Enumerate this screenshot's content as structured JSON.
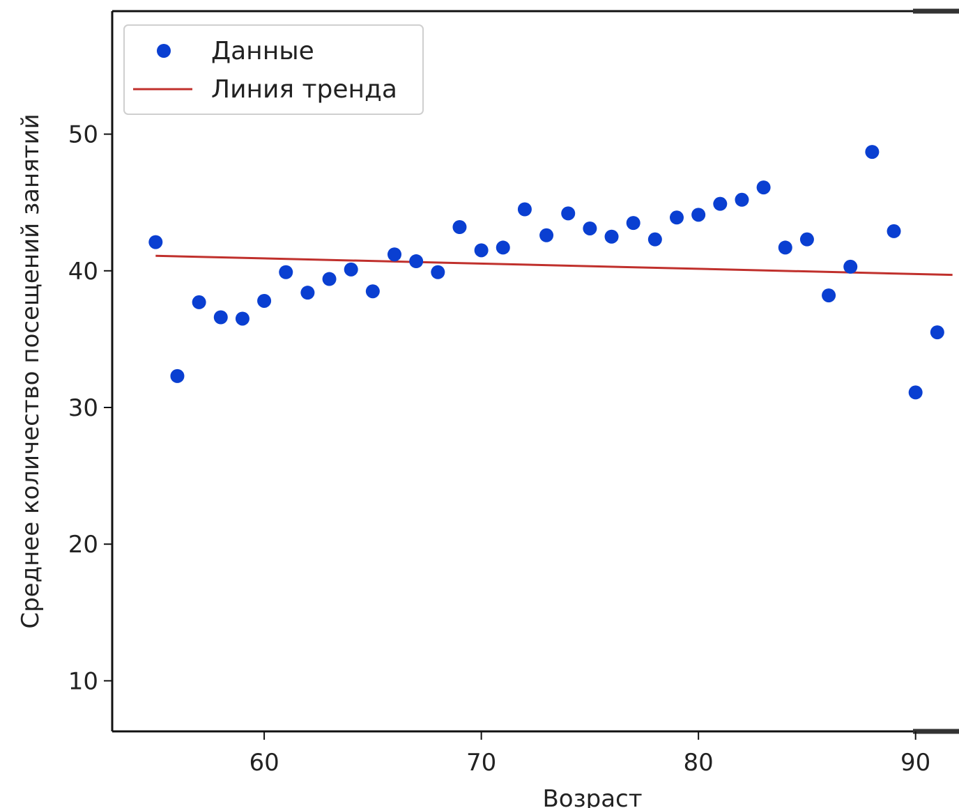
{
  "chart_data": {
    "type": "scatter",
    "title": "",
    "xlabel": "Возраст",
    "ylabel": "Среднее количество посещений занятий",
    "xlim": [
      53,
      92
    ],
    "ylim": [
      6.3,
      59
    ],
    "xticks": [
      60,
      70,
      80,
      90
    ],
    "yticks": [
      10,
      20,
      30,
      40,
      50
    ],
    "grid": false,
    "legend_position": "top-left",
    "colors": {
      "points": "#0a3fd1",
      "trend": "#c0302c",
      "axes": "#111111"
    },
    "series": [
      {
        "name": "Данные",
        "kind": "scatter",
        "x": [
          55,
          56,
          57,
          58,
          59,
          60,
          61,
          62,
          63,
          64,
          65,
          66,
          67,
          68,
          69,
          70,
          71,
          72,
          73,
          74,
          75,
          76,
          77,
          78,
          79,
          80,
          81,
          82,
          83,
          84,
          85,
          86,
          87,
          88,
          89,
          90,
          91
        ],
        "y": [
          42.1,
          32.3,
          37.7,
          36.6,
          36.5,
          37.8,
          39.9,
          38.4,
          39.4,
          40.1,
          38.5,
          41.2,
          40.7,
          39.9,
          43.2,
          41.5,
          41.7,
          44.5,
          42.6,
          44.2,
          43.1,
          42.5,
          43.5,
          42.3,
          43.9,
          44.1,
          44.9,
          45.2,
          46.1,
          41.7,
          42.3,
          38.2,
          40.3,
          48.7,
          42.9,
          31.1,
          35.5
        ]
      },
      {
        "name": "Линия тренда",
        "kind": "line",
        "x": [
          55,
          91.7
        ],
        "y": [
          41.1,
          39.7
        ]
      }
    ]
  }
}
